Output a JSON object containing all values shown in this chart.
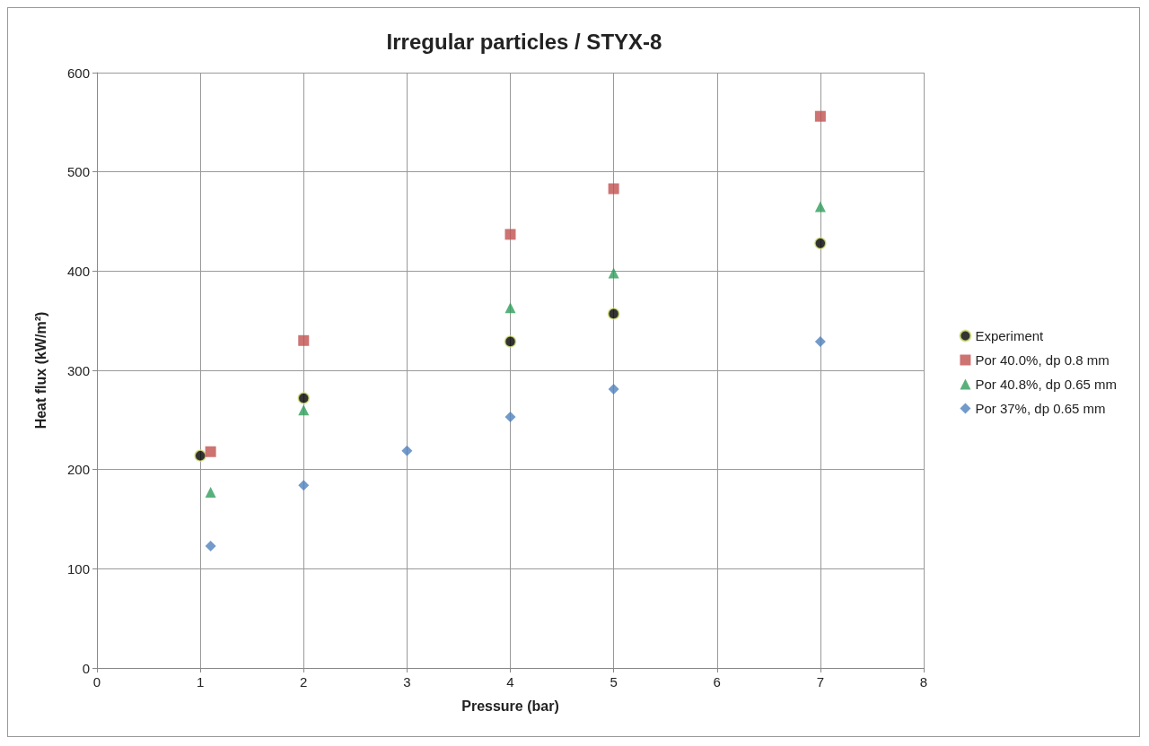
{
  "chart_data": {
    "type": "scatter",
    "title": "Irregular particles / STYX-8",
    "xlabel": "Pressure (bar)",
    "ylabel": "Heat flux (kW/m²)",
    "xlim": [
      0,
      8
    ],
    "xticks": [
      0,
      1,
      2,
      3,
      4,
      5,
      6,
      7,
      8
    ],
    "ylim": [
      0,
      600
    ],
    "yticks": [
      0,
      100,
      200,
      300,
      400,
      500,
      600
    ],
    "grid": true,
    "legend": "right",
    "series": [
      {
        "name": "Experiment",
        "color": "#000000",
        "marker": "circle",
        "x": [
          1,
          2,
          4,
          5,
          7
        ],
        "values": [
          214,
          272,
          329,
          357,
          428
        ]
      },
      {
        "name": "Por 40.0%, dp 0.8 mm",
        "color": "#c0504d",
        "marker": "square",
        "x": [
          1.1,
          2,
          4,
          5,
          7
        ],
        "values": [
          218,
          330,
          437,
          483,
          556
        ]
      },
      {
        "name": "Por 40.8%, dp 0.65 mm",
        "color": "#2e9e5a",
        "marker": "triangle",
        "x": [
          1.1,
          2,
          4,
          5,
          7
        ],
        "values": [
          177,
          260,
          363,
          398,
          465
        ]
      },
      {
        "name": "Por 37%, dp 0.65 mm",
        "color": "#4f81bd",
        "marker": "diamond",
        "x": [
          1.1,
          2,
          3,
          4,
          5,
          7
        ],
        "values": [
          123,
          184,
          219,
          253,
          281,
          329
        ]
      }
    ]
  }
}
